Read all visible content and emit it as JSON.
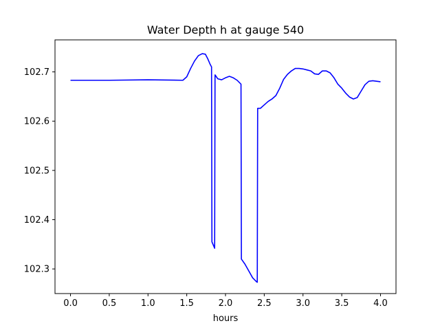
{
  "chart_data": {
    "type": "line",
    "title": "Water Depth h at gauge 540",
    "xlabel": "hours",
    "ylabel": "",
    "xlim": [
      -0.2,
      4.2
    ],
    "ylim": [
      102.25,
      102.765
    ],
    "xticks": [
      0.0,
      0.5,
      1.0,
      1.5,
      2.0,
      2.5,
      3.0,
      3.5,
      4.0
    ],
    "xtick_labels": [
      "0.0",
      "0.5",
      "1.0",
      "1.5",
      "2.0",
      "2.5",
      "3.0",
      "3.5",
      "4.0"
    ],
    "yticks": [
      102.3,
      102.4,
      102.5,
      102.6,
      102.7
    ],
    "ytick_labels": [
      "102.3",
      "102.4",
      "102.5",
      "102.6",
      "102.7"
    ],
    "grid": false,
    "series": [
      {
        "color": "#0000ff",
        "x": [
          0.0,
          0.5,
          1.0,
          1.45,
          1.5,
          1.55,
          1.6,
          1.65,
          1.7,
          1.74,
          1.77,
          1.8,
          1.82,
          1.825,
          1.86,
          1.865,
          1.9,
          1.95,
          2.0,
          2.05,
          2.1,
          2.15,
          2.2,
          2.205,
          2.25,
          2.3,
          2.35,
          2.4,
          2.41,
          2.415,
          2.45,
          2.5,
          2.55,
          2.6,
          2.65,
          2.7,
          2.75,
          2.8,
          2.85,
          2.9,
          2.95,
          3.0,
          3.05,
          3.1,
          3.15,
          3.2,
          3.25,
          3.3,
          3.35,
          3.4,
          3.45,
          3.5,
          3.55,
          3.6,
          3.65,
          3.7,
          3.75,
          3.8,
          3.85,
          3.9,
          3.95,
          4.0
        ],
        "y": [
          102.683,
          102.683,
          102.684,
          102.683,
          102.69,
          102.707,
          102.722,
          102.733,
          102.737,
          102.736,
          102.727,
          102.716,
          102.71,
          102.355,
          102.342,
          102.694,
          102.686,
          102.684,
          102.688,
          102.691,
          102.688,
          102.683,
          102.675,
          102.32,
          102.31,
          102.296,
          102.282,
          102.274,
          102.273,
          102.626,
          102.626,
          102.633,
          102.64,
          102.645,
          102.652,
          102.667,
          102.685,
          102.695,
          102.702,
          102.707,
          102.707,
          102.706,
          102.704,
          102.702,
          102.696,
          102.695,
          102.702,
          102.702,
          102.698,
          102.688,
          102.675,
          102.667,
          102.657,
          102.649,
          102.645,
          102.648,
          102.661,
          102.674,
          102.681,
          102.682,
          102.681,
          102.68
        ]
      }
    ]
  }
}
